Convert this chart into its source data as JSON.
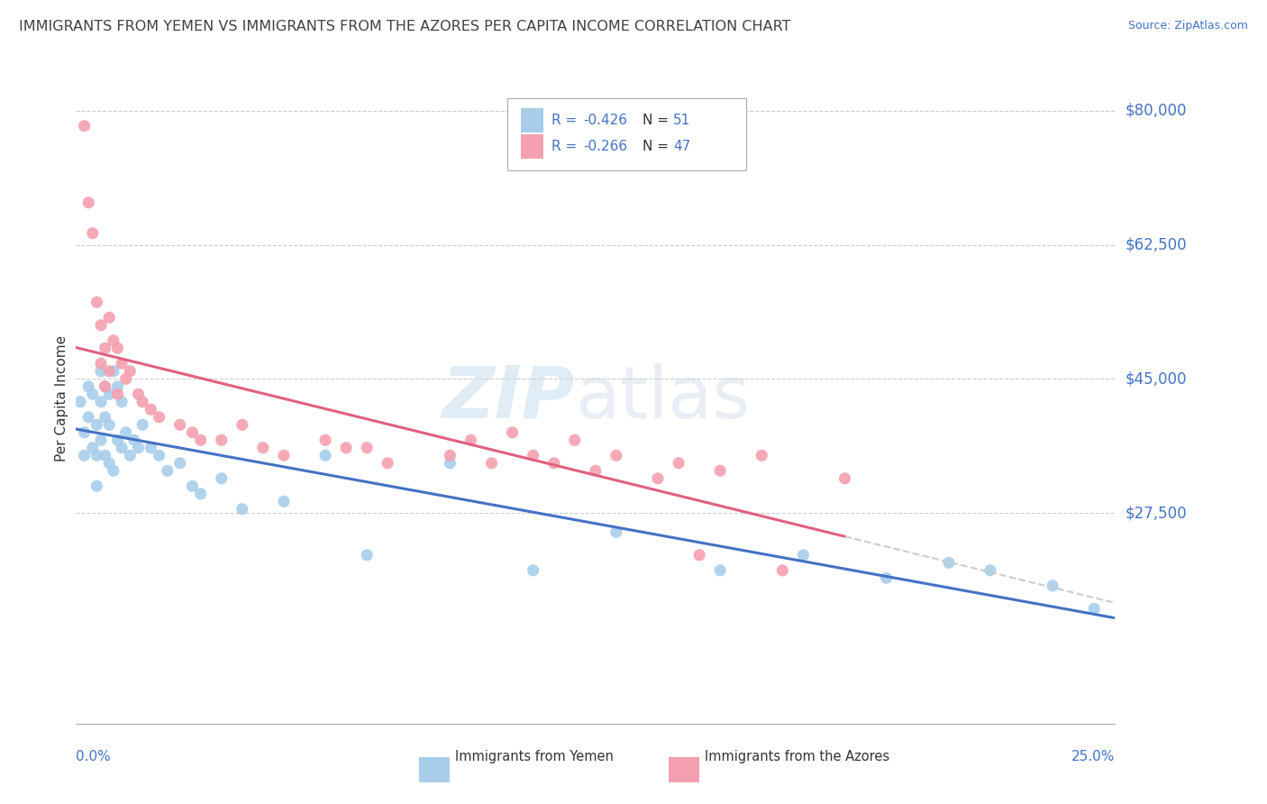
{
  "title": "IMMIGRANTS FROM YEMEN VS IMMIGRANTS FROM THE AZORES PER CAPITA INCOME CORRELATION CHART",
  "source": "Source: ZipAtlas.com",
  "ylabel": "Per Capita Income",
  "ylim": [
    0,
    85000
  ],
  "xlim": [
    0.0,
    0.25
  ],
  "legend_r1": "-0.426",
  "legend_n1": "51",
  "legend_r2": "-0.266",
  "legend_n2": "47",
  "yemen_color": "#A8CDEA",
  "azores_color": "#F4A0B0",
  "trend_yemen_color": "#4472C4",
  "trend_azores_color": "#E06080",
  "trend_dashed_color": "#CCCCCC",
  "grid_color": "#CCCCCC",
  "axis_label_color": "#4472C4",
  "title_color": "#404040",
  "text_color": "#333333",
  "yemen_points_x": [
    0.001,
    0.002,
    0.002,
    0.003,
    0.003,
    0.004,
    0.004,
    0.005,
    0.005,
    0.005,
    0.006,
    0.006,
    0.006,
    0.007,
    0.007,
    0.007,
    0.008,
    0.008,
    0.008,
    0.009,
    0.009,
    0.01,
    0.01,
    0.011,
    0.011,
    0.012,
    0.013,
    0.014,
    0.015,
    0.016,
    0.018,
    0.02,
    0.022,
    0.025,
    0.028,
    0.03,
    0.035,
    0.04,
    0.05,
    0.06,
    0.07,
    0.09,
    0.11,
    0.13,
    0.155,
    0.175,
    0.195,
    0.21,
    0.22,
    0.235,
    0.245
  ],
  "yemen_points_y": [
    42000,
    38000,
    35000,
    44000,
    40000,
    36000,
    43000,
    39000,
    35000,
    31000,
    46000,
    42000,
    37000,
    44000,
    40000,
    35000,
    43000,
    39000,
    34000,
    46000,
    33000,
    44000,
    37000,
    42000,
    36000,
    38000,
    35000,
    37000,
    36000,
    39000,
    36000,
    35000,
    33000,
    34000,
    31000,
    30000,
    32000,
    28000,
    29000,
    35000,
    22000,
    34000,
    20000,
    25000,
    20000,
    22000,
    19000,
    21000,
    20000,
    18000,
    15000
  ],
  "azores_points_x": [
    0.002,
    0.003,
    0.004,
    0.005,
    0.006,
    0.006,
    0.007,
    0.007,
    0.008,
    0.008,
    0.009,
    0.01,
    0.01,
    0.011,
    0.012,
    0.013,
    0.015,
    0.016,
    0.018,
    0.02,
    0.025,
    0.028,
    0.03,
    0.035,
    0.04,
    0.045,
    0.05,
    0.06,
    0.065,
    0.07,
    0.075,
    0.09,
    0.095,
    0.1,
    0.105,
    0.11,
    0.115,
    0.12,
    0.125,
    0.13,
    0.14,
    0.145,
    0.15,
    0.155,
    0.165,
    0.17,
    0.185
  ],
  "azores_points_y": [
    78000,
    68000,
    64000,
    55000,
    52000,
    47000,
    49000,
    44000,
    53000,
    46000,
    50000,
    49000,
    43000,
    47000,
    45000,
    46000,
    43000,
    42000,
    41000,
    40000,
    39000,
    38000,
    37000,
    37000,
    39000,
    36000,
    35000,
    37000,
    36000,
    36000,
    34000,
    35000,
    37000,
    34000,
    38000,
    35000,
    34000,
    37000,
    33000,
    35000,
    32000,
    34000,
    22000,
    33000,
    35000,
    20000,
    32000
  ],
  "ytick_vals": [
    27500,
    45000,
    62500,
    80000
  ],
  "ytick_labels": [
    "$27,500",
    "$45,000",
    "$62,500",
    "$80,000"
  ]
}
